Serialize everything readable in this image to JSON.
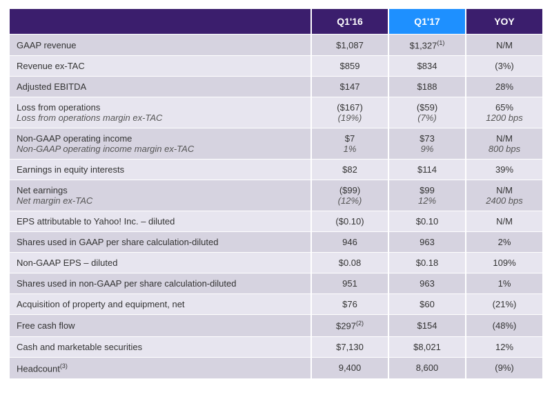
{
  "table": {
    "header_bg_main": "#3b1e6d",
    "header_bg_accent": "#1e90ff",
    "row_bg_alt": [
      "#d6d3e0",
      "#e7e5ef"
    ],
    "headers": [
      "",
      "Q1'16",
      "Q1'17",
      "YOY"
    ],
    "rows": [
      {
        "label": "GAAP revenue",
        "q16": "$1,087",
        "q17": "$1,327",
        "q17_sup": "(1)",
        "yoy": "N/M"
      },
      {
        "label": "Revenue ex-TAC",
        "q16": "$859",
        "q17": "$834",
        "yoy": "(3%)"
      },
      {
        "label": "Adjusted EBITDA",
        "q16": "$147",
        "q17": "$188",
        "yoy": "28%"
      },
      {
        "label": "Loss from operations",
        "sublabel": "Loss from operations margin ex-TAC",
        "q16": "($167)",
        "q16_sub": "(19%)",
        "q17": "($59)",
        "q17_sub": "(7%)",
        "yoy": "65%",
        "yoy_sub": "1200 bps"
      },
      {
        "label": "Non-GAAP operating income",
        "sublabel": "Non-GAAP operating income margin ex-TAC",
        "q16": "$7",
        "q16_sub": "1%",
        "q17": "$73",
        "q17_sub": "9%",
        "yoy": "N/M",
        "yoy_sub": "800 bps"
      },
      {
        "label": "Earnings in equity interests",
        "q16": "$82",
        "q17": "$114",
        "yoy": "39%"
      },
      {
        "label": "Net earnings",
        "sublabel": "Net margin ex-TAC",
        "q16": "($99)",
        "q16_sub": "(12%)",
        "q17": "$99",
        "q17_sub": "12%",
        "yoy": "N/M",
        "yoy_sub": "2400 bps"
      },
      {
        "label": "EPS attributable to Yahoo! Inc. – diluted",
        "q16": "($0.10)",
        "q17": "$0.10",
        "yoy": "N/M"
      },
      {
        "label": "Shares used in GAAP per share calculation-diluted",
        "q16": "946",
        "q17": "963",
        "yoy": "2%"
      },
      {
        "label": "Non-GAAP EPS – diluted",
        "q16": "$0.08",
        "q17": "$0.18",
        "yoy": "109%"
      },
      {
        "label": "Shares used in non-GAAP per share calculation-diluted",
        "q16": "951",
        "q17": "963",
        "yoy": "1%"
      },
      {
        "label": "Acquisition of property and equipment, net",
        "q16": "$76",
        "q17": "$60",
        "yoy": "(21%)"
      },
      {
        "label": "Free cash flow",
        "q16": "$297",
        "q16_sup": "(2)",
        "q17": "$154",
        "yoy": "(48%)"
      },
      {
        "label": "Cash and marketable securities",
        "q16": "$7,130",
        "q17": "$8,021",
        "yoy": "12%"
      },
      {
        "label": "Headcount",
        "label_sup": "(3)",
        "q16": "9,400",
        "q17": "8,600",
        "yoy": "(9%)"
      }
    ]
  }
}
